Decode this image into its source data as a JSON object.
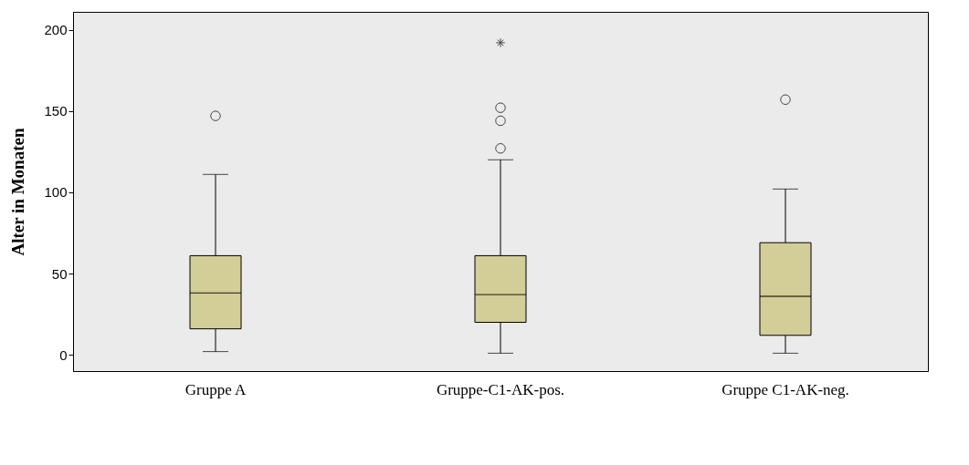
{
  "chart_data": {
    "type": "box",
    "ylabel": "Alter in Monaten",
    "categories": [
      "Gruppe A",
      "Gruppe-C1-AK-pos.",
      "Gruppe C1-AK-neg."
    ],
    "series": [
      {
        "color": "#d3ce97",
        "boxes": [
          {
            "low": 2,
            "q1": 16,
            "median": 38,
            "q3": 61,
            "high": 111,
            "outliers": [
              147
            ]
          },
          {
            "low": 1,
            "q1": 20,
            "median": 37,
            "q3": 61,
            "high": 120,
            "outliers": [
              127,
              144,
              152
            ]
          },
          {
            "low": 1,
            "q1": 12,
            "median": 36,
            "q3": 69,
            "high": 102,
            "outliers": [
              157
            ]
          }
        ]
      },
      {
        "type": "scatter",
        "marker": "cross",
        "color": "#000000",
        "x": [
          "Gruppe-C1-AK-pos."
        ],
        "values": [
          192
        ]
      }
    ],
    "ylim": [
      -10,
      211
    ],
    "yticks": [
      0,
      50,
      100,
      150,
      200
    ],
    "grid": false
  }
}
